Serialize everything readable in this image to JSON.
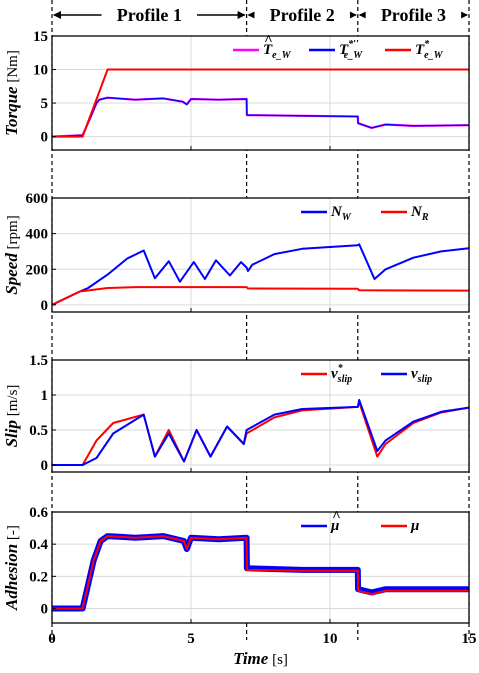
{
  "header": {
    "profiles": [
      {
        "label": "Profile 1",
        "from": 0,
        "to": 7
      },
      {
        "label": "Profile 2",
        "from": 7,
        "to": 11
      },
      {
        "label": "Profile 3",
        "from": 11,
        "to": 15
      }
    ]
  },
  "x_axis": {
    "label_italic": "Time",
    "label_unit": "[s]",
    "range": [
      0,
      15
    ],
    "ticks": [
      "0",
      "5",
      "10",
      "15"
    ]
  },
  "legend_marks": {
    "hat": "^",
    "star": "*",
    "star_double_prime": "*′′"
  },
  "colors": {
    "magenta": "#ff00ff",
    "blue": "#0000ff",
    "red": "#ff0000",
    "grid": "#d9d9d9"
  },
  "chart_data": [
    {
      "type": "line",
      "ylabel_italic": "Torque",
      "ylabel_unit": "[Nm]",
      "ylim": [
        -2,
        15
      ],
      "yticks": [
        "0",
        "5",
        "10",
        "15"
      ],
      "grid": true,
      "legend_placement": "top-right",
      "legend": [
        {
          "base": "T",
          "sub": "e_W",
          "mark": "hat",
          "color": "#ff00ff"
        },
        {
          "base": "T",
          "sub": "e_W",
          "mark": "star_double_prime",
          "color": "#0000ff"
        },
        {
          "base": "T",
          "sub": "e_W",
          "mark": "star",
          "color": "#ff0000"
        }
      ],
      "series": [
        {
          "color": "#ff00ff",
          "width": 2.2,
          "x": [
            0,
            1.1,
            1.4,
            1.6,
            1.7,
            2,
            3,
            4,
            4.7,
            4.85,
            5,
            6,
            7,
            7.01,
            9,
            11,
            11.01,
            11.5,
            12,
            13,
            15
          ],
          "y": [
            0,
            0.2,
            3,
            5,
            5.5,
            5.8,
            5.5,
            5.7,
            5.2,
            4.8,
            5.6,
            5.5,
            5.6,
            3.2,
            3.1,
            3.0,
            2.0,
            1.3,
            1.8,
            1.6,
            1.7
          ]
        },
        {
          "color": "#0000ff",
          "width": 1.3,
          "x": [
            0,
            1.1,
            1.4,
            1.6,
            1.7,
            2,
            3,
            4,
            4.7,
            4.85,
            5,
            6,
            7,
            7.01,
            9,
            11,
            11.01,
            11.5,
            12,
            13,
            15
          ],
          "y": [
            0,
            0.2,
            3,
            5,
            5.5,
            5.8,
            5.5,
            5.7,
            5.2,
            4.8,
            5.6,
            5.5,
            5.6,
            3.2,
            3.1,
            3.0,
            2.0,
            1.3,
            1.8,
            1.6,
            1.7
          ]
        },
        {
          "color": "#ff0000",
          "width": 2,
          "x": [
            0,
            1.1,
            2,
            15
          ],
          "y": [
            0,
            0,
            10,
            10
          ]
        }
      ]
    },
    {
      "type": "line",
      "ylabel_italic": "Speed",
      "ylabel_unit": "[rpm]",
      "ylim": [
        -40,
        600
      ],
      "yticks": [
        "0",
        "200",
        "400",
        "600"
      ],
      "grid": true,
      "legend_placement": "top-right",
      "legend": [
        {
          "base": "N",
          "sub": "W",
          "mark": "",
          "color": "#0000ff"
        },
        {
          "base": "N",
          "sub": "R",
          "mark": "",
          "color": "#ff0000"
        }
      ],
      "series": [
        {
          "color": "#0000ff",
          "width": 2,
          "x": [
            0,
            1,
            1.3,
            2,
            2.7,
            3.3,
            3.7,
            4.2,
            4.6,
            5.1,
            5.5,
            5.9,
            6.4,
            6.8,
            7,
            7.05,
            7.2,
            8,
            9,
            10,
            11,
            11.05,
            11.6,
            12,
            13,
            14,
            15
          ],
          "y": [
            0,
            75,
            95,
            170,
            260,
            305,
            150,
            245,
            130,
            240,
            145,
            250,
            165,
            240,
            210,
            190,
            225,
            285,
            315,
            325,
            335,
            340,
            145,
            200,
            265,
            300,
            318
          ]
        },
        {
          "color": "#ff0000",
          "width": 2,
          "x": [
            0,
            1,
            2,
            3,
            7,
            7.05,
            11,
            11.05,
            15
          ],
          "y": [
            0,
            75,
            95,
            100,
            100,
            92,
            90,
            82,
            80
          ]
        }
      ]
    },
    {
      "type": "line",
      "ylabel_italic": "Slip",
      "ylabel_unit": "[m/s]",
      "ylim": [
        -0.1,
        1.5
      ],
      "yticks": [
        "0",
        "0.5",
        "1",
        "1.5"
      ],
      "grid": true,
      "legend_placement": "top-right",
      "legend": [
        {
          "base": "v",
          "sub": "slip",
          "mark": "star",
          "color": "#ff0000"
        },
        {
          "base": "v",
          "sub": "slip",
          "mark": "",
          "color": "#0000ff"
        }
      ],
      "series": [
        {
          "color": "#ff0000",
          "width": 2,
          "x": [
            0,
            1.1,
            1.6,
            2.2,
            3.3,
            3.7,
            4.2,
            4.75,
            5.2,
            5.7,
            6.3,
            6.9,
            7,
            8,
            9,
            11,
            11.05,
            11.7,
            12,
            13,
            14,
            15
          ],
          "y": [
            0,
            0,
            0.35,
            0.6,
            0.72,
            0.12,
            0.5,
            0.05,
            0.5,
            0.12,
            0.55,
            0.3,
            0.45,
            0.68,
            0.78,
            0.83,
            0.9,
            0.12,
            0.3,
            0.6,
            0.75,
            0.82
          ]
        },
        {
          "color": "#0000ff",
          "width": 2,
          "x": [
            0,
            1.1,
            1.6,
            2.2,
            3.3,
            3.7,
            4.2,
            4.75,
            5.2,
            5.7,
            6.3,
            6.9,
            7,
            8,
            9,
            11,
            11.05,
            11.7,
            12,
            13,
            14,
            15
          ],
          "y": [
            0,
            0,
            0.1,
            0.45,
            0.72,
            0.12,
            0.45,
            0.05,
            0.5,
            0.12,
            0.55,
            0.3,
            0.5,
            0.72,
            0.8,
            0.83,
            0.93,
            0.2,
            0.35,
            0.62,
            0.76,
            0.82
          ]
        }
      ]
    },
    {
      "type": "line",
      "ylabel_italic": "Adhesion",
      "ylabel_unit": "[-]",
      "ylim": [
        -0.09,
        0.6
      ],
      "yticks": [
        "0",
        "0.2",
        "0.4",
        "0.6"
      ],
      "grid": true,
      "legend_placement": "top-right",
      "legend": [
        {
          "base": "μ",
          "sub": "",
          "mark": "hat",
          "color": "#0000ff"
        },
        {
          "base": "μ",
          "sub": "",
          "mark": "",
          "color": "#ff0000"
        }
      ],
      "series": [
        {
          "color": "#0000ff",
          "width": 6,
          "x": [
            0,
            1.1,
            1.5,
            1.75,
            2,
            3,
            4,
            4.75,
            4.85,
            5,
            6,
            7,
            7.01,
            9,
            11,
            11.01,
            11.5,
            12,
            15
          ],
          "y": [
            0,
            0,
            0.3,
            0.42,
            0.45,
            0.44,
            0.45,
            0.42,
            0.37,
            0.44,
            0.43,
            0.44,
            0.25,
            0.24,
            0.24,
            0.12,
            0.1,
            0.12,
            0.12
          ]
        },
        {
          "color": "#ff0000",
          "width": 2,
          "x": [
            0,
            1.1,
            1.5,
            1.75,
            2,
            3,
            4,
            4.75,
            4.85,
            5,
            6,
            7,
            7.01,
            9,
            11,
            11.01,
            11.5,
            12,
            15
          ],
          "y": [
            0,
            0,
            0.3,
            0.42,
            0.45,
            0.44,
            0.45,
            0.42,
            0.37,
            0.44,
            0.43,
            0.44,
            0.24,
            0.235,
            0.235,
            0.11,
            0.09,
            0.11,
            0.11
          ]
        }
      ]
    }
  ]
}
